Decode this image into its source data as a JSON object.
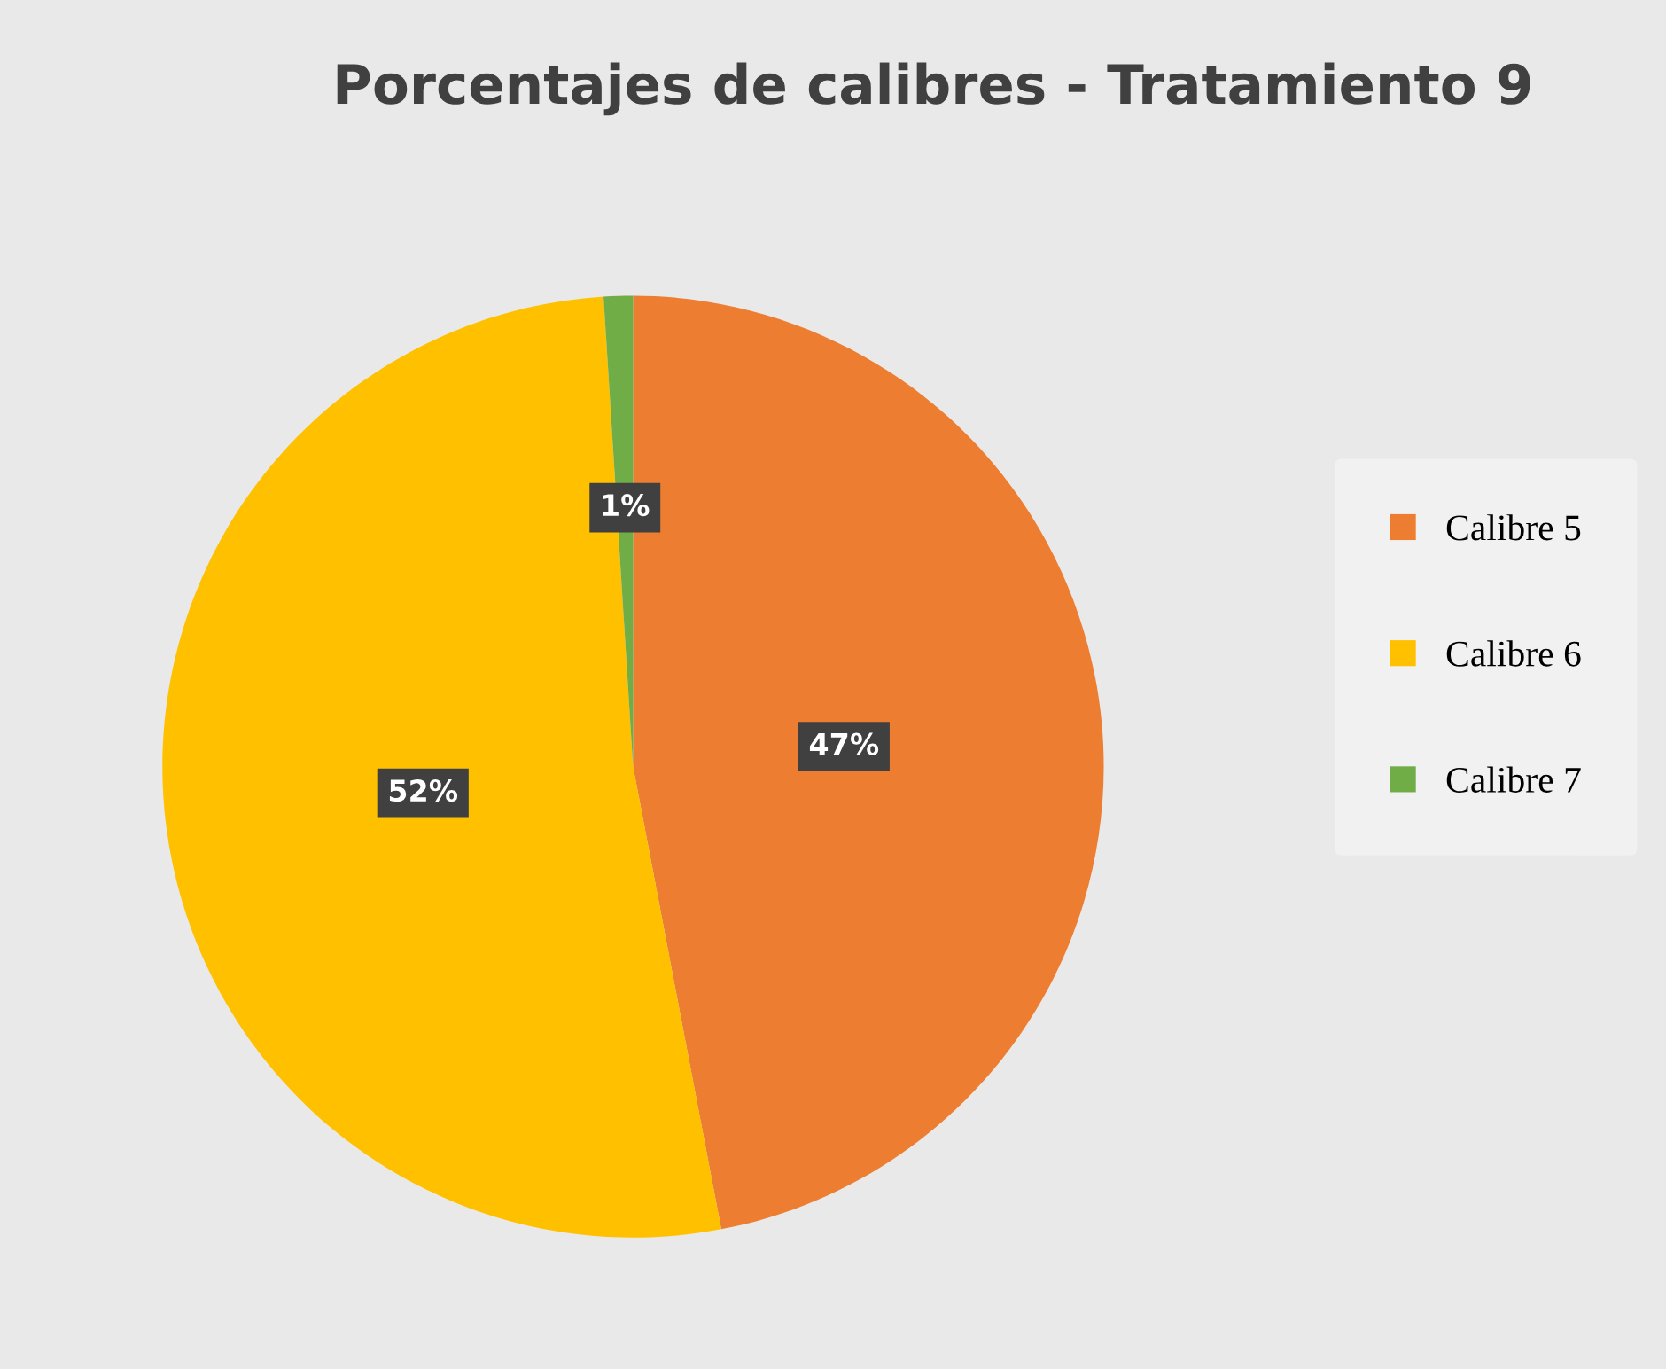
{
  "chart_data": {
    "type": "pie",
    "title": "Porcentajes de calibres - Tratamiento 9",
    "categories": [
      "Calibre 5",
      "Calibre 6",
      "Calibre 7"
    ],
    "values": [
      47,
      52,
      1
    ],
    "colors": [
      "#ed7d31",
      "#ffc000",
      "#70ad47"
    ],
    "value_labels": [
      "47%",
      "52%",
      "1%"
    ],
    "legend": "right"
  }
}
